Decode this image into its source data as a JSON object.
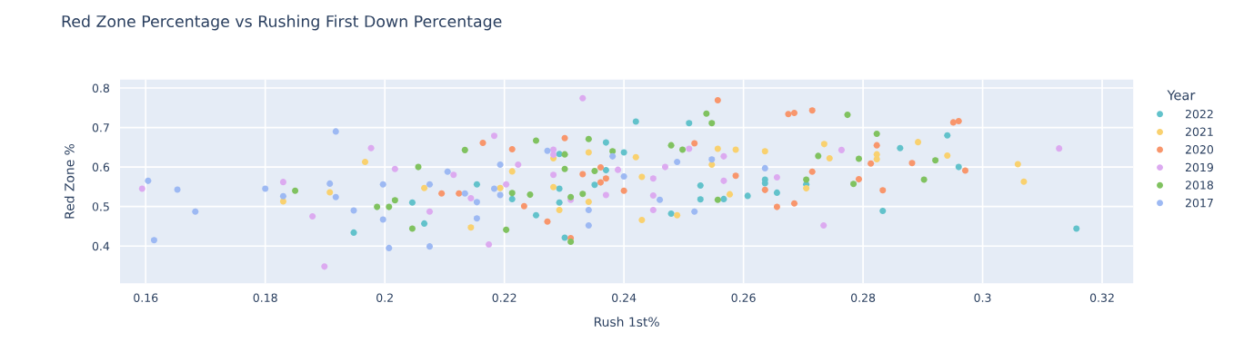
{
  "chart_data": {
    "type": "scatter",
    "title": "Red Zone Percentage vs Rushing First Down Percentage",
    "xlabel": "Rush 1st%",
    "ylabel": "Red Zone %",
    "legend_title": "Year",
    "xlim": [
      0.1557,
      0.3252
    ],
    "ylim": [
      0.306,
      0.821
    ],
    "xticks": [
      0.16,
      0.18,
      {
        "value": 0.2,
        "label": "0.2"
      },
      0.22,
      0.24,
      0.26,
      0.28,
      {
        "value": 0.3,
        "label": "0.3"
      },
      0.32
    ],
    "yticks": [
      0.4,
      0.5,
      0.6,
      0.7,
      0.8
    ],
    "grid": true,
    "legend": "right",
    "marker": "circle",
    "series": [
      {
        "name": "2022",
        "color": "#62c2cb",
        "x": [
          0.1948,
          0.2046,
          0.2066,
          0.2154,
          0.2213,
          0.2253,
          0.2292,
          0.2292,
          0.2292,
          0.2301,
          0.2351,
          0.237,
          0.237,
          0.24,
          0.242,
          0.2449,
          0.2479,
          0.2509,
          0.2528,
          0.2528,
          0.2567,
          0.2607,
          0.2636,
          0.2636,
          0.2656,
          0.2705,
          0.2833,
          0.2862,
          0.2941,
          0.296,
          0.3157
        ],
        "values": [
          0.434,
          0.51,
          0.457,
          0.556,
          0.519,
          0.478,
          0.633,
          0.545,
          0.51,
          0.421,
          0.555,
          0.662,
          0.592,
          0.637,
          0.715,
          null,
          0.482,
          0.711,
          0.553,
          0.518,
          0.519,
          0.527,
          0.568,
          0.559,
          0.535,
          0.556,
          0.489,
          0.648,
          0.68,
          0.6,
          0.444
        ]
      },
      {
        "name": "2021",
        "color": "#f9d16f",
        "x": [
          0.183,
          0.1908,
          0.1967,
          0.2066,
          0.2144,
          0.2193,
          0.2213,
          0.2282,
          0.2282,
          0.2292,
          0.2341,
          0.2341,
          0.242,
          0.243,
          0.243,
          0.2489,
          0.2557,
          0.2547,
          0.2577,
          0.2587,
          0.2636,
          0.2735,
          0.2744,
          0.2705,
          0.2823,
          0.2823,
          0.2892,
          0.2941,
          0.3059,
          0.3069
        ],
        "values": [
          0.513,
          0.536,
          0.613,
          0.547,
          0.447,
          0.547,
          0.589,
          0.622,
          0.549,
          0.491,
          0.637,
          0.512,
          0.625,
          0.575,
          0.466,
          0.478,
          0.646,
          0.606,
          0.531,
          0.644,
          0.64,
          0.658,
          0.622,
          0.546,
          0.632,
          0.62,
          0.663,
          0.629,
          0.607,
          0.563
        ]
      },
      {
        "name": "2020",
        "color": "#f8966c",
        "x": [
          0.2164,
          0.2213,
          0.2095,
          0.2124,
          0.2233,
          0.2272,
          0.2301,
          0.2311,
          0.2331,
          0.2361,
          0.2361,
          0.237,
          0.24,
          0.2518,
          0.2557,
          0.2587,
          0.2675,
          0.2685,
          0.2715,
          0.2715,
          0.2636,
          0.2656,
          0.2685,
          0.2823,
          0.2813,
          0.2793,
          0.2833,
          0.2882,
          0.2951,
          0.296,
          0.2971
        ],
        "values": [
          0.661,
          0.645,
          0.533,
          0.533,
          0.501,
          0.462,
          0.673,
          0.42,
          0.582,
          0.599,
          0.561,
          0.571,
          0.54,
          0.66,
          0.769,
          0.578,
          0.734,
          0.737,
          0.743,
          0.588,
          0.542,
          0.499,
          0.508,
          0.655,
          0.609,
          0.569,
          0.541,
          0.61,
          0.713,
          0.716,
          0.591
        ]
      },
      {
        "name": "2019",
        "color": "#dcaaf0",
        "x": [
          0.1594,
          0.183,
          0.1879,
          0.1899,
          0.1977,
          0.2017,
          0.2075,
          0.2115,
          0.2144,
          0.2174,
          0.2183,
          0.2203,
          0.2223,
          0.2331,
          0.2282,
          0.2282,
          0.2282,
          0.2311,
          0.237,
          0.239,
          0.2449,
          0.2449,
          0.2449,
          0.2469,
          0.2509,
          0.2567,
          0.2567,
          0.2764,
          0.2656,
          0.2734,
          0.3128
        ],
        "values": [
          0.545,
          0.562,
          0.475,
          0.348,
          0.648,
          0.595,
          0.487,
          0.58,
          0.521,
          0.404,
          0.679,
          0.556,
          0.606,
          0.774,
          0.644,
          0.631,
          0.58,
          0.517,
          0.529,
          0.593,
          0.571,
          0.528,
          0.491,
          0.6,
          0.646,
          0.627,
          0.565,
          0.643,
          0.574,
          0.452,
          0.647
        ]
      },
      {
        "name": "2018",
        "color": "#80c260",
        "x": [
          0.185,
          0.2134,
          0.2056,
          0.1987,
          0.2007,
          0.2017,
          0.2046,
          0.2203,
          0.2213,
          0.2243,
          0.2253,
          0.2341,
          0.2301,
          0.2301,
          0.2381,
          0.2351,
          0.2311,
          0.2331,
          0.2311,
          0.2479,
          0.2498,
          0.2538,
          0.2547,
          0.2557,
          0.2774,
          0.2725,
          0.2705,
          0.2793,
          0.2784,
          0.2823,
          0.2902,
          0.2921
        ],
        "values": [
          0.54,
          0.643,
          0.6,
          0.499,
          0.499,
          0.516,
          0.444,
          0.441,
          0.534,
          0.53,
          0.667,
          0.671,
          0.632,
          0.595,
          0.64,
          0.59,
          0.524,
          0.532,
          0.411,
          0.655,
          0.644,
          0.735,
          0.711,
          0.517,
          0.732,
          0.628,
          0.568,
          0.621,
          0.557,
          0.684,
          0.568,
          0.617
        ]
      },
      {
        "name": "2017",
        "color": "#9db9f3",
        "x": [
          0.1604,
          0.1614,
          0.1653,
          0.1683,
          0.18,
          0.183,
          0.1918,
          0.1908,
          0.1918,
          0.1948,
          0.1997,
          0.1997,
          0.2007,
          0.2075,
          0.2075,
          0.2105,
          0.2134,
          0.2154,
          0.2154,
          0.2183,
          0.2193,
          0.2193,
          0.2272,
          0.2381,
          0.24,
          0.246,
          0.2341,
          0.2341,
          0.2489,
          0.2547,
          0.2518,
          0.2636
        ],
        "values": [
          0.565,
          0.415,
          0.543,
          0.487,
          0.545,
          0.526,
          0.69,
          0.558,
          0.524,
          0.49,
          0.556,
          0.467,
          0.395,
          0.556,
          0.399,
          0.588,
          0.533,
          0.511,
          0.47,
          0.545,
          0.606,
          0.529,
          0.641,
          0.627,
          0.576,
          0.517,
          0.491,
          0.452,
          0.613,
          0.619,
          0.487,
          0.597
        ]
      }
    ]
  }
}
